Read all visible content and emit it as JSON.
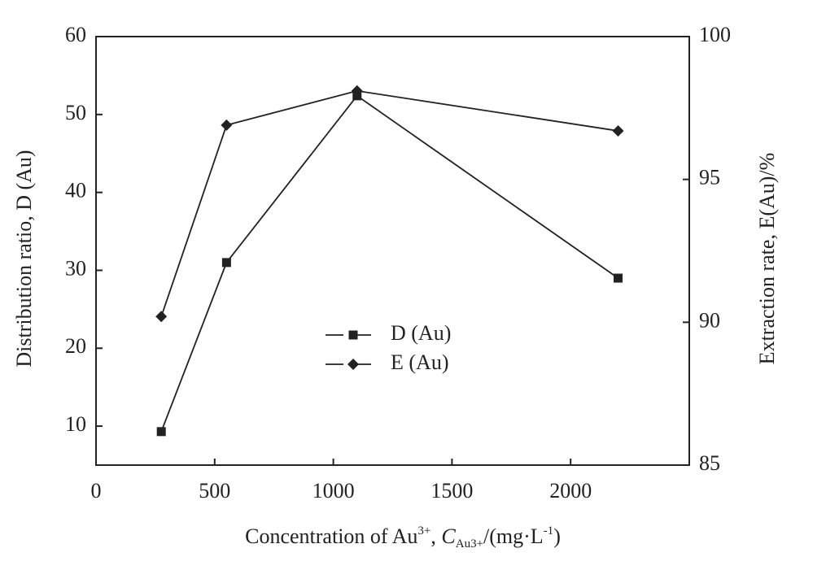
{
  "chart_data": {
    "type": "line",
    "xlabel": [
      {
        "text": "Concentration of Au"
      },
      {
        "text": "3+",
        "shift": "super"
      },
      {
        "text": ", "
      },
      {
        "text": "C",
        "style": "italic"
      },
      {
        "text": "Au3+",
        "shift": "sub"
      },
      {
        "text": "/(mg·L"
      },
      {
        "text": "-1",
        "shift": "super"
      },
      {
        "text": ")"
      }
    ],
    "ylabel": "Distribution ratio, D (Au)",
    "y2label": "Extraction rate, E(Au)/%",
    "x": [
      275,
      550,
      1100,
      2200
    ],
    "series": [
      {
        "name": "D (Au)",
        "color": "#222222",
        "marker": "square",
        "values": [
          9.3,
          31.0,
          52.4,
          29.0
        ]
      },
      {
        "name": "E (Au)",
        "color": "#222222",
        "marker": "diamond",
        "axis": "y2",
        "values": [
          90.2,
          96.9,
          98.1,
          96.7
        ]
      }
    ],
    "xlim": [
      0,
      2500
    ],
    "xticks": [
      0,
      500,
      1000,
      1500,
      2000
    ],
    "ylim": [
      5,
      60
    ],
    "yticks": [
      10,
      20,
      30,
      40,
      50,
      60
    ],
    "y2lim": [
      85,
      100
    ],
    "y2ticks": [
      85,
      90,
      95,
      100
    ],
    "legend": "center",
    "grid": false
  }
}
